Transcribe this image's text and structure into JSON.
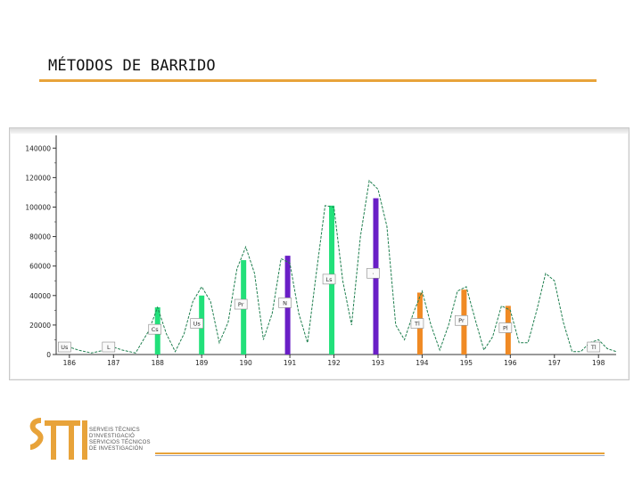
{
  "slide": {
    "title": "MÉTODOS DE BARRIDO"
  },
  "logo": {
    "mark": "STTI",
    "lines": [
      "SERVEIS TÈCNICS",
      "D'INVESTIGACIÓ",
      "SERVICIOS TÉCNICOS",
      "DE INVESTIGACIÓN"
    ]
  },
  "colors": {
    "accent": "#e8a33a",
    "green_bar": "#22e07a",
    "purple_bar": "#6a1fc6",
    "orange_bar": "#f08a24",
    "curve": "#1f7f4f"
  },
  "chart_data": {
    "type": "bar",
    "ylim": [
      0,
      145000
    ],
    "xlim": [
      185.7,
      198.4
    ],
    "y_ticks": [
      0,
      20000,
      40000,
      60000,
      80000,
      100000,
      120000,
      140000
    ],
    "y_tick_labels": [
      "0",
      "20000",
      "40000",
      "60000",
      "80000",
      "100000",
      "120000",
      "140000"
    ],
    "x_ticks": [
      186,
      187,
      188,
      189,
      190,
      191,
      192,
      193,
      194,
      195,
      196,
      197,
      198
    ],
    "x_tick_labels": [
      "186",
      "187",
      "188",
      "189",
      "190",
      "191",
      "192",
      "193",
      "194",
      "195",
      "196",
      "197",
      "198"
    ],
    "bars": [
      {
        "x": 188.0,
        "value": 32000,
        "color": "green"
      },
      {
        "x": 189.0,
        "value": 40000,
        "color": "green"
      },
      {
        "x": 189.95,
        "value": 64000,
        "color": "green"
      },
      {
        "x": 190.95,
        "value": 67000,
        "color": "purple"
      },
      {
        "x": 191.95,
        "value": 101000,
        "color": "green"
      },
      {
        "x": 192.95,
        "value": 106000,
        "color": "purple"
      },
      {
        "x": 193.95,
        "value": 42000,
        "color": "orange"
      },
      {
        "x": 194.95,
        "value": 44000,
        "color": "orange"
      },
      {
        "x": 195.95,
        "value": 33000,
        "color": "orange"
      }
    ],
    "trace": {
      "x": [
        185.8,
        186.0,
        186.2,
        186.5,
        186.8,
        187.0,
        187.2,
        187.5,
        187.8,
        188.0,
        188.2,
        188.4,
        188.6,
        188.8,
        189.0,
        189.2,
        189.4,
        189.6,
        189.8,
        190.0,
        190.2,
        190.4,
        190.6,
        190.8,
        191.0,
        191.2,
        191.4,
        191.6,
        191.8,
        192.0,
        192.2,
        192.4,
        192.6,
        192.8,
        193.0,
        193.2,
        193.4,
        193.6,
        193.8,
        194.0,
        194.2,
        194.4,
        194.6,
        194.8,
        195.0,
        195.2,
        195.4,
        195.6,
        195.8,
        196.0,
        196.2,
        196.4,
        196.6,
        196.8,
        197.0,
        197.2,
        197.4,
        197.6,
        197.8,
        198.0,
        198.2,
        198.4
      ],
      "y": [
        2000,
        5000,
        3000,
        1000,
        3000,
        5000,
        3000,
        1000,
        16000,
        32000,
        14000,
        2000,
        14000,
        36000,
        46000,
        36000,
        8000,
        22000,
        58000,
        73000,
        55000,
        10000,
        28000,
        65000,
        62000,
        28000,
        8000,
        55000,
        101000,
        100000,
        50000,
        20000,
        80000,
        118000,
        112000,
        87000,
        20000,
        10000,
        28000,
        43000,
        20000,
        3000,
        20000,
        43000,
        46000,
        24000,
        3000,
        12000,
        33000,
        30000,
        8000,
        8000,
        30000,
        55000,
        50000,
        22000,
        2000,
        2000,
        8000,
        10000,
        4000,
        2000
      ]
    },
    "peak_labels": [
      {
        "x": 185.95,
        "value": 3000,
        "text": "Us"
      },
      {
        "x": 186.95,
        "value": 3000,
        "text": "L"
      },
      {
        "x": 188.0,
        "value": 15000,
        "text": "Cs"
      },
      {
        "x": 188.95,
        "value": 19000,
        "text": "Us"
      },
      {
        "x": 189.95,
        "value": 32000,
        "text": "Pr"
      },
      {
        "x": 190.95,
        "value": 33000,
        "text": "N"
      },
      {
        "x": 191.95,
        "value": 49000,
        "text": "Ls"
      },
      {
        "x": 192.95,
        "value": 53000,
        "text": "·"
      },
      {
        "x": 193.95,
        "value": 19000,
        "text": "Tl"
      },
      {
        "x": 194.95,
        "value": 21000,
        "text": "Pr"
      },
      {
        "x": 195.95,
        "value": 16000,
        "text": "Pl"
      },
      {
        "x": 197.95,
        "value": 3000,
        "text": "Tl"
      }
    ]
  }
}
